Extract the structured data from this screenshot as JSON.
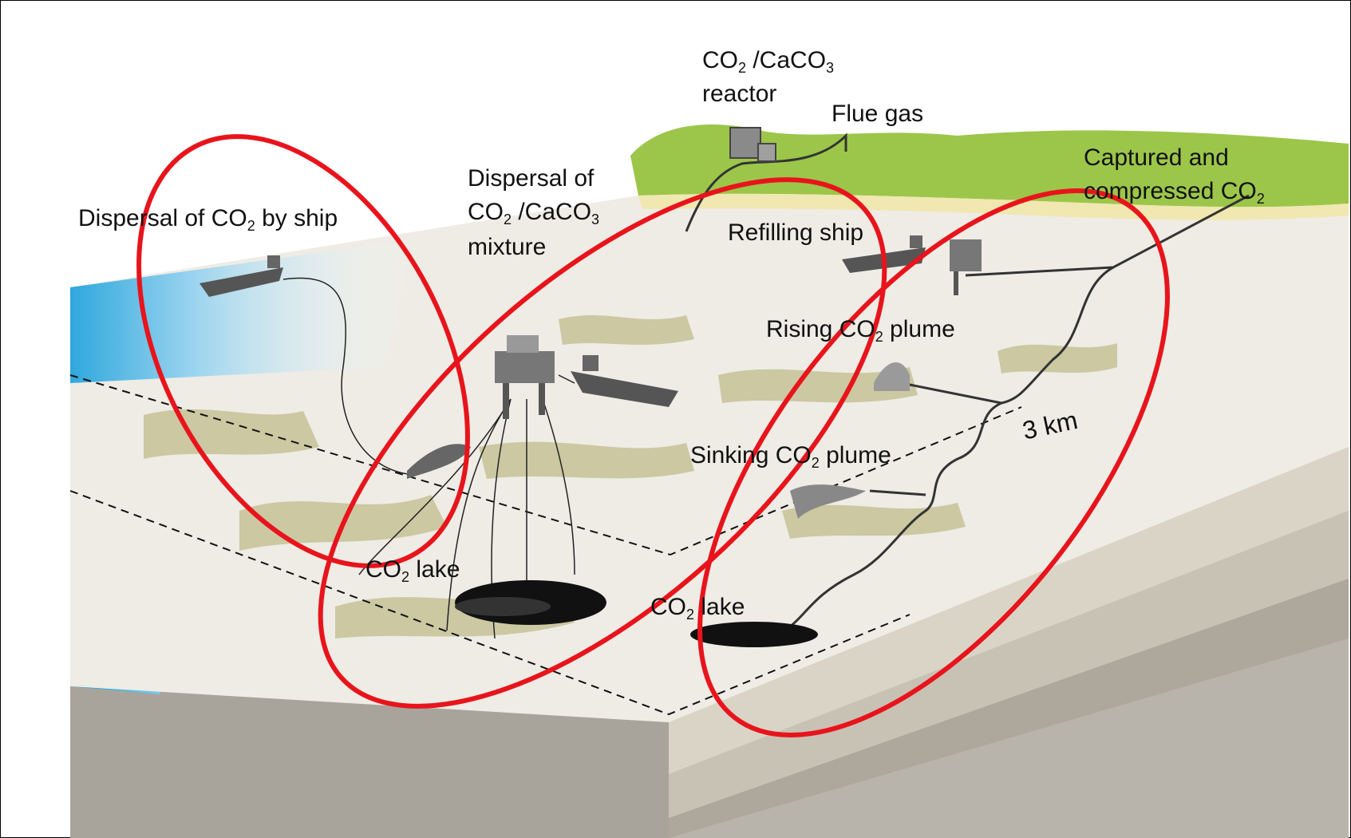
{
  "labels": {
    "reactor_line1_a": "CO",
    "reactor_line1_sub1": "2",
    "reactor_line1_b": " /CaCO",
    "reactor_line1_sub2": "3",
    "reactor_line2": "reactor",
    "flue_gas": "Flue gas",
    "captured_line1": "Captured and",
    "captured_line2_a": "compressed CO",
    "captured_line2_sub": "2",
    "dispersal_mix_line1": "Dispersal of",
    "dispersal_mix_line2_a": "CO",
    "dispersal_mix_line2_sub1": "2",
    "dispersal_mix_line2_b": " /CaCO",
    "dispersal_mix_line2_sub2": "3",
    "dispersal_mix_line3": "mixture",
    "dispersal_ship_a": "Dispersal of CO",
    "dispersal_ship_sub": "2",
    "dispersal_ship_b": " by ship",
    "refilling_ship": "Refilling ship",
    "rising_a": "Rising CO",
    "rising_sub": "2",
    "rising_b": " plume",
    "sinking_a": "Sinking CO",
    "sinking_sub": "2",
    "sinking_b": " plume",
    "lake_left_a": "CO",
    "lake_left_sub": "2",
    "lake_left_b": " lake",
    "lake_right_a": "CO",
    "lake_right_sub": "2",
    "lake_right_b": " lake",
    "depth": "3 km"
  },
  "colors": {
    "highlight_ellipse": "#e8141c",
    "land": "#9cc64a",
    "seafloor": "#eceae2",
    "sediment": "#c7c49b",
    "water": "#2aa6df",
    "block_side": "#b5b0a8"
  },
  "icons": [
    "ship-icon",
    "platform-icon",
    "reactor-icon",
    "pipeline-icon"
  ]
}
